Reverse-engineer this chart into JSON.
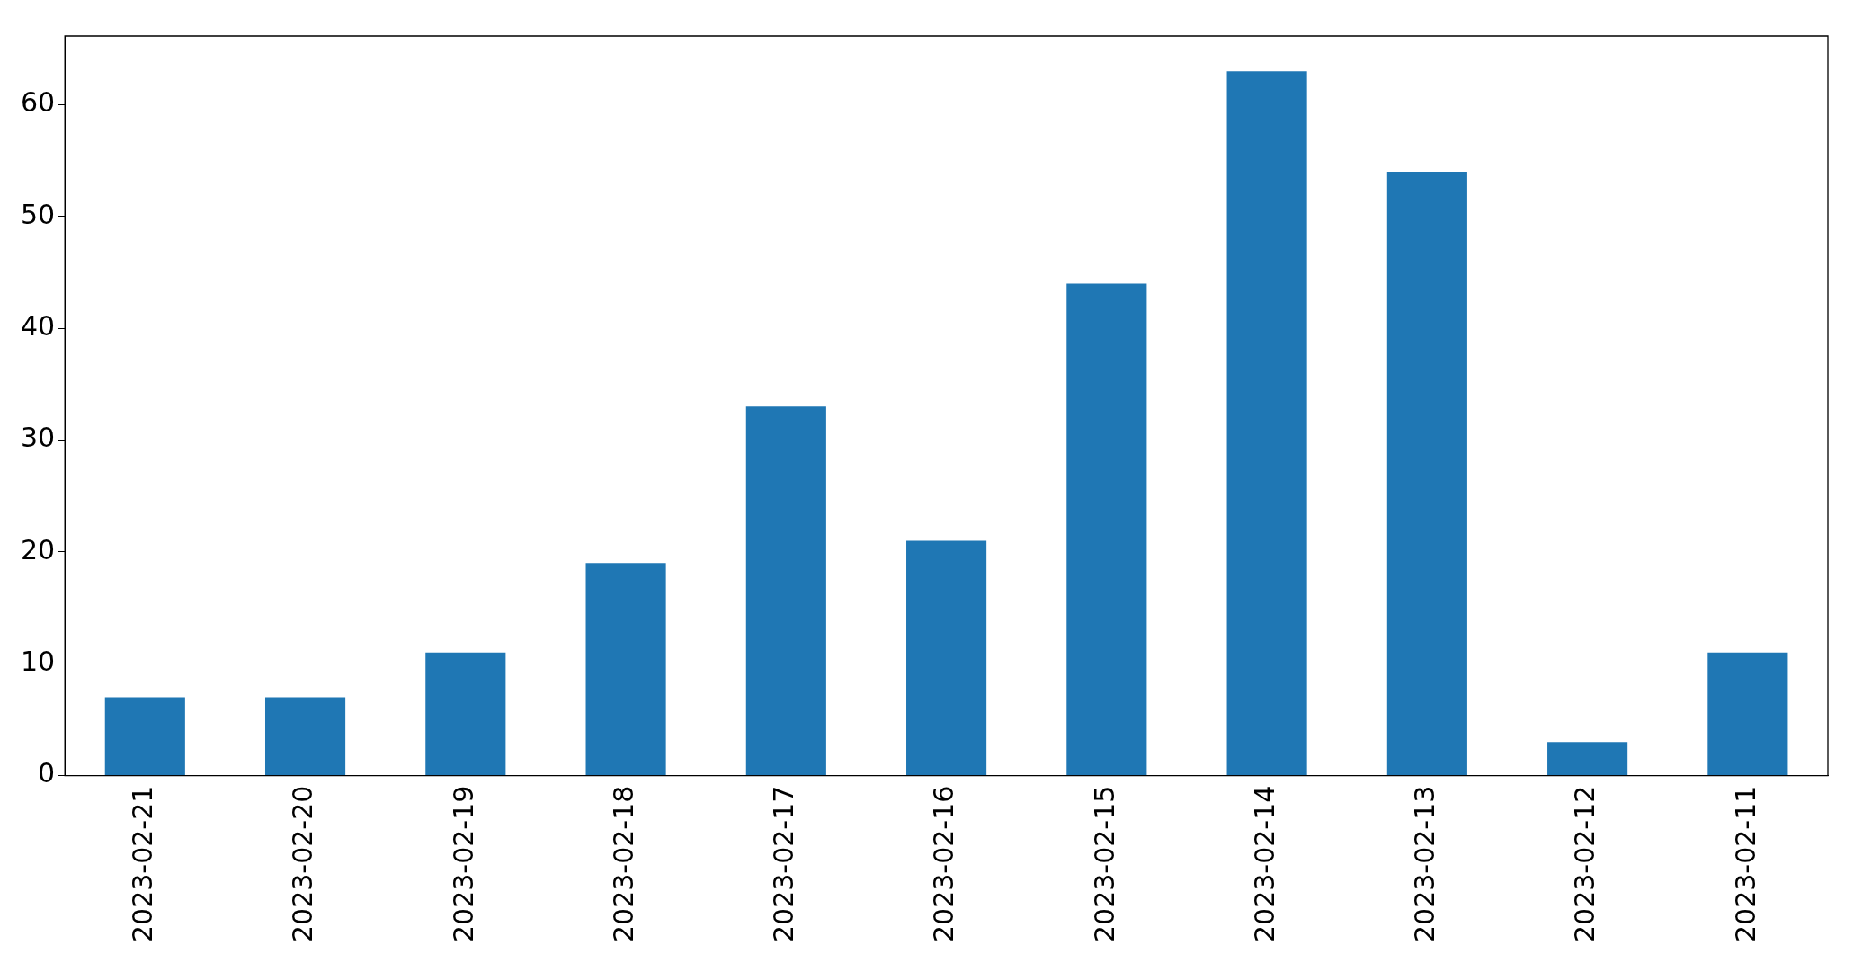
{
  "chart_data": {
    "type": "bar",
    "categories": [
      "2023-02-21",
      "2023-02-20",
      "2023-02-19",
      "2023-02-18",
      "2023-02-17",
      "2023-02-16",
      "2023-02-15",
      "2023-02-14",
      "2023-02-13",
      "2023-02-12",
      "2023-02-11"
    ],
    "values": [
      7,
      7,
      11,
      19,
      33,
      21,
      44,
      63,
      54,
      3,
      11
    ],
    "color": "#1f77b4",
    "ylim": [
      0,
      66.15
    ],
    "yticks": [
      0,
      10,
      20,
      30,
      40,
      50,
      60
    ],
    "grid": false,
    "legend": false
  }
}
